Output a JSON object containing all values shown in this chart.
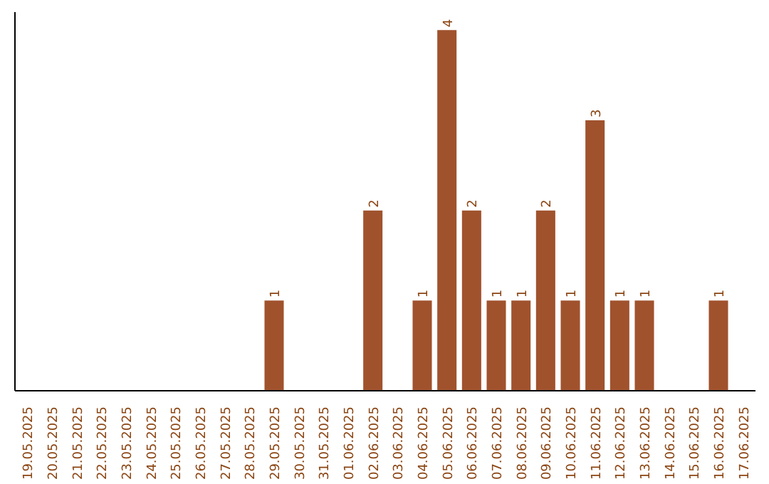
{
  "chart_data": {
    "type": "bar",
    "categories": [
      "19.05.2025",
      "20.05.2025",
      "21.05.2025",
      "22.05.2025",
      "23.05.2025",
      "24.05.2025",
      "25.05.2025",
      "26.05.2025",
      "27.05.2025",
      "28.05.2025",
      "29.05.2025",
      "30.05.2025",
      "31.05.2025",
      "01.06.2025",
      "02.06.2025",
      "03.06.2025",
      "04.06.2025",
      "05.06.2025",
      "06.06.2025",
      "07.06.2025",
      "08.06.2025",
      "09.06.2025",
      "10.06.2025",
      "11.06.2025",
      "12.06.2025",
      "13.06.2025",
      "14.06.2025",
      "15.06.2025",
      "16.06.2025",
      "17.06.2025"
    ],
    "values": [
      0,
      0,
      0,
      0,
      0,
      0,
      0,
      0,
      0,
      0,
      1,
      0,
      0,
      0,
      2,
      0,
      1,
      4,
      2,
      1,
      1,
      2,
      1,
      3,
      1,
      1,
      0,
      0,
      1,
      0
    ],
    "value_labels": [
      null,
      null,
      null,
      null,
      null,
      null,
      null,
      null,
      null,
      null,
      "1",
      null,
      null,
      null,
      "2",
      null,
      "1",
      "4",
      "2",
      "1",
      "1",
      "2",
      "1",
      "3",
      "1",
      "1",
      null,
      null,
      "1",
      null
    ],
    "color": "#a0522d",
    "ylim": [
      0,
      4.2
    ],
    "tick_labels": "x"
  }
}
